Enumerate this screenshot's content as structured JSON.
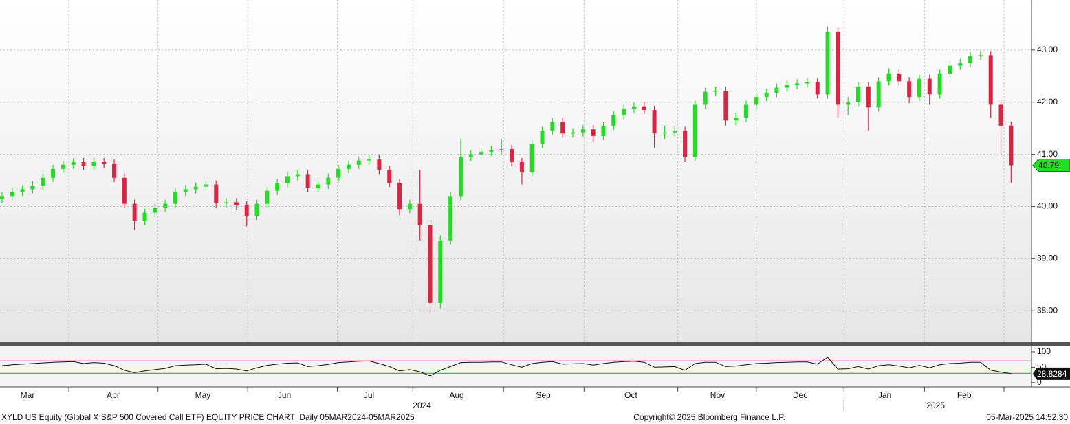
{
  "chart_data": [
    {
      "type": "candlestick",
      "color_up": "#22dd22",
      "color_down": "#e0213f",
      "open": [
        40.15,
        40.2,
        40.28,
        40.33,
        40.4,
        40.55,
        40.72,
        40.8,
        40.85,
        40.78,
        40.85,
        40.82,
        40.55,
        40.05,
        39.72,
        39.88,
        39.97,
        40.05,
        40.28,
        40.33,
        40.38,
        40.42,
        40.06,
        40.08,
        40.02,
        39.82,
        40.05,
        40.3,
        40.45,
        40.58,
        40.62,
        40.35,
        40.42,
        40.55,
        40.72,
        40.8,
        40.88,
        40.9,
        40.7,
        40.45,
        39.95,
        40.05,
        39.65,
        38.15,
        39.35,
        40.2,
        40.95,
        41.0,
        41.05,
        41.08,
        41.1,
        40.85,
        40.65,
        41.2,
        41.45,
        41.62,
        41.4,
        41.42,
        41.48,
        41.35,
        41.55,
        41.75,
        41.87,
        41.92,
        41.85,
        41.4,
        41.42,
        41.45,
        40.95,
        41.95,
        42.2,
        42.22,
        41.65,
        41.7,
        41.95,
        42.1,
        42.18,
        42.28,
        42.33,
        42.36,
        42.38,
        42.15,
        43.35,
        41.95,
        42.0,
        42.3,
        41.9,
        42.4,
        42.55,
        42.4,
        42.1,
        42.45,
        42.15,
        42.55,
        42.7,
        42.75,
        42.88,
        42.9,
        41.95,
        41.55
      ],
      "high": [
        40.28,
        40.36,
        40.41,
        40.48,
        40.63,
        40.8,
        40.88,
        40.93,
        40.93,
        40.93,
        40.93,
        40.9,
        40.63,
        40.13,
        39.96,
        40.05,
        40.13,
        40.36,
        40.41,
        40.46,
        40.5,
        40.5,
        40.16,
        40.16,
        40.1,
        40.13,
        40.38,
        40.53,
        40.66,
        40.7,
        40.7,
        40.5,
        40.63,
        40.8,
        40.88,
        40.96,
        40.98,
        40.98,
        40.78,
        40.53,
        40.13,
        40.7,
        39.73,
        39.45,
        40.28,
        41.3,
        41.08,
        41.13,
        41.16,
        41.3,
        41.18,
        40.93,
        41.28,
        41.53,
        41.7,
        41.7,
        41.5,
        41.56,
        41.56,
        41.63,
        41.83,
        41.95,
        42.0,
        42.0,
        41.93,
        41.55,
        41.55,
        41.53,
        42.03,
        42.28,
        42.3,
        42.3,
        41.8,
        42.03,
        42.18,
        42.26,
        42.36,
        42.41,
        42.44,
        42.46,
        42.46,
        43.45,
        43.43,
        42.1,
        42.38,
        42.38,
        42.48,
        42.65,
        42.63,
        42.48,
        42.53,
        42.53,
        42.63,
        42.78,
        42.83,
        42.96,
        42.98,
        42.98,
        42.05,
        41.63
      ],
      "low": [
        40.07,
        40.12,
        40.2,
        40.25,
        40.32,
        40.47,
        40.64,
        40.72,
        40.7,
        40.7,
        40.74,
        40.47,
        39.97,
        39.55,
        39.64,
        39.8,
        39.89,
        39.97,
        40.2,
        40.25,
        40.3,
        39.98,
        39.98,
        39.94,
        39.62,
        39.74,
        39.97,
        40.22,
        40.37,
        40.5,
        40.27,
        40.27,
        40.34,
        40.47,
        40.64,
        40.72,
        40.8,
        40.62,
        40.37,
        39.83,
        39.87,
        39.35,
        37.95,
        38.05,
        39.27,
        40.12,
        40.87,
        40.92,
        40.97,
        41.0,
        40.77,
        40.42,
        40.57,
        41.12,
        41.37,
        41.32,
        41.32,
        41.34,
        41.24,
        41.27,
        41.47,
        41.67,
        41.79,
        41.77,
        41.12,
        41.3,
        41.34,
        40.85,
        40.87,
        41.87,
        42.12,
        41.55,
        41.55,
        41.62,
        41.87,
        42.02,
        42.1,
        42.2,
        42.25,
        42.28,
        42.07,
        42.07,
        41.7,
        41.75,
        41.92,
        41.45,
        41.82,
        42.32,
        42.32,
        41.98,
        42.02,
        41.95,
        42.07,
        42.47,
        42.62,
        42.67,
        42.8,
        41.7,
        40.95,
        40.45
      ],
      "close": [
        40.2,
        40.28,
        40.33,
        40.4,
        40.55,
        40.72,
        40.8,
        40.85,
        40.78,
        40.85,
        40.82,
        40.55,
        40.05,
        39.72,
        39.88,
        39.97,
        40.05,
        40.28,
        40.33,
        40.38,
        40.42,
        40.06,
        40.08,
        40.02,
        39.82,
        40.05,
        40.3,
        40.45,
        40.58,
        40.62,
        40.35,
        40.42,
        40.55,
        40.72,
        40.8,
        40.88,
        40.9,
        40.7,
        40.45,
        39.95,
        40.05,
        39.65,
        38.15,
        39.35,
        40.2,
        40.95,
        41.0,
        41.05,
        41.08,
        41.1,
        40.85,
        40.65,
        41.2,
        41.45,
        41.62,
        41.4,
        41.42,
        41.48,
        41.35,
        41.55,
        41.75,
        41.87,
        41.92,
        41.85,
        41.4,
        41.42,
        41.45,
        40.95,
        41.95,
        42.2,
        42.22,
        41.65,
        41.7,
        41.95,
        42.1,
        42.18,
        42.28,
        42.33,
        42.36,
        42.38,
        42.15,
        43.35,
        41.95,
        42.0,
        42.3,
        41.9,
        42.4,
        42.55,
        42.4,
        42.1,
        42.45,
        42.15,
        42.55,
        42.7,
        42.75,
        42.88,
        42.9,
        41.95,
        41.55,
        40.79
      ],
      "ylim": [
        37.41,
        43.96
      ],
      "yticks": [
        {
          "value": 38,
          "label": "38.00"
        },
        {
          "value": 39,
          "label": "39.00"
        },
        {
          "value": 40,
          "label": "40.00"
        },
        {
          "value": 41,
          "label": "41.00"
        },
        {
          "value": 42,
          "label": "42.00"
        },
        {
          "value": 43,
          "label": "43.00"
        }
      ],
      "xlim": [
        -0.2,
        101
      ],
      "xticks": [
        6.55,
        15.3,
        24.1,
        32.9,
        40.3,
        49.2,
        57.1,
        66.3,
        74.0,
        82.6,
        90.5,
        98.3
      ],
      "xtick_labels": [
        {
          "value": 2.5,
          "label": "Mar"
        },
        {
          "value": 10.9,
          "label": "Apr"
        },
        {
          "value": 19.7,
          "label": "May"
        },
        {
          "value": 27.7,
          "label": "Jun"
        },
        {
          "value": 36.0,
          "label": "Jul"
        },
        {
          "value": 44.6,
          "label": "Aug"
        },
        {
          "value": 53.1,
          "label": "Sep"
        },
        {
          "value": 61.7,
          "label": "Oct"
        },
        {
          "value": 70.2,
          "label": "Nov"
        },
        {
          "value": 78.3,
          "label": "Dec"
        },
        {
          "value": 86.6,
          "label": "Jan"
        },
        {
          "value": 94.4,
          "label": "Feb"
        }
      ],
      "year_labels": [
        {
          "value": 41.2,
          "label": "2024"
        },
        {
          "value": 91.6,
          "label": "2025"
        }
      ],
      "year_break": 82.6,
      "grid": true
    },
    {
      "type": "line",
      "color": "#111111",
      "values": [
        55,
        58,
        60,
        62,
        64,
        66,
        67,
        68,
        62,
        65,
        63,
        55,
        40,
        32,
        38,
        42,
        46,
        55,
        57,
        58,
        60,
        45,
        46,
        44,
        38,
        48,
        56,
        60,
        63,
        64,
        52,
        55,
        59,
        65,
        67,
        69,
        70,
        62,
        52,
        38,
        42,
        35,
        22,
        40,
        52,
        65,
        66,
        66,
        67,
        67,
        58,
        50,
        62,
        66,
        68,
        60,
        61,
        62,
        57,
        62,
        66,
        68,
        69,
        66,
        50,
        51,
        52,
        40,
        62,
        66,
        66,
        52,
        54,
        58,
        62,
        63,
        65,
        66,
        67,
        67,
        60,
        82,
        44,
        45,
        52,
        44,
        55,
        58,
        54,
        48,
        56,
        48,
        58,
        62,
        63,
        66,
        66,
        40,
        34,
        28.8284
      ],
      "ylim": [
        -14,
        120
      ],
      "yticks": [
        0,
        50,
        100
      ],
      "reference_lines": [
        {
          "value": 70,
          "color": "#e03030"
        },
        {
          "value": 30,
          "color": "#22bb22"
        }
      ]
    }
  ],
  "footer": {
    "left": "XYLD US Equity (Global X S&P 500 Covered Call ETF) EQUITY PRICE CHART  Daily 05MAR2024-05MAR2025",
    "center": "Copyright© 2025 Bloomberg Finance L.P.",
    "right": "05-Mar-2025 14:52:30"
  }
}
